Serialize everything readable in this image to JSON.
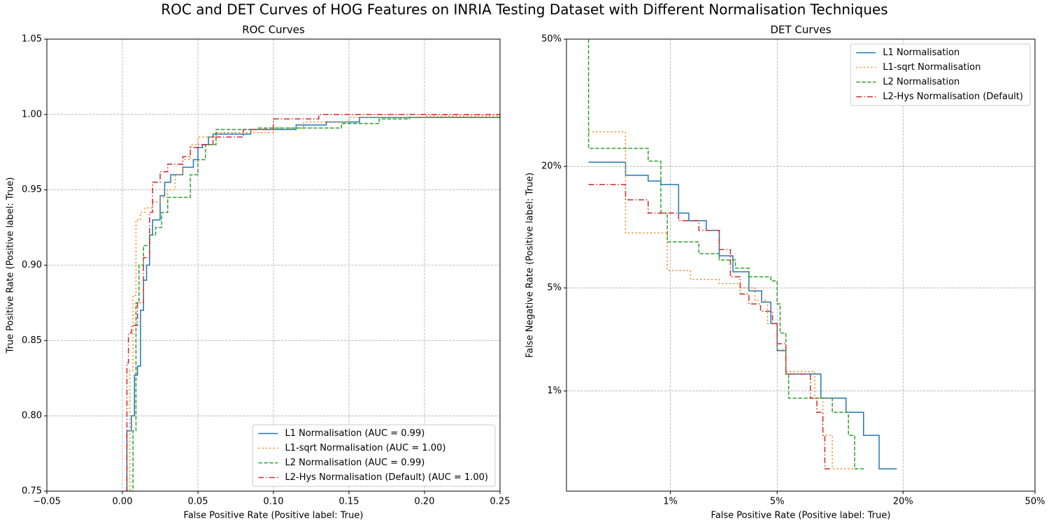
{
  "title": "ROC and DET Curves of HOG Features on INRIA Testing Dataset with Different Normalisation Techniques",
  "chart_data": [
    {
      "type": "line",
      "title": "ROC Curves",
      "x_label": "False Positive Rate (Positive label: True)",
      "y_label": "True Positive Rate (Positive label: True)",
      "scale": "linear",
      "drawstyle": "steps-post",
      "grid": true,
      "legend": "lower right",
      "xlim": [
        -0.05,
        0.25
      ],
      "xticks": [
        {
          "value": -0.05,
          "label": "−0.05"
        },
        {
          "value": 0,
          "label": "0.00"
        },
        0.05,
        {
          "value": 0.1,
          "label": "0.10"
        },
        0.15,
        {
          "value": 0.2,
          "label": "0.20"
        },
        0.25
      ],
      "ylim": [
        0.75,
        1.05
      ],
      "yticks": [
        0.75,
        {
          "value": 0.8,
          "label": "0.80"
        },
        0.85,
        {
          "value": 0.9,
          "label": "0.90"
        },
        0.95,
        {
          "value": 1,
          "label": "1.00"
        },
        1.05
      ],
      "series": [
        {
          "name": "L1 Normalisation (AUC = 0.99)",
          "color": "#1f77b4",
          "dash": "solid",
          "x": [
            0.003,
            0.003,
            0.006,
            0.008,
            0.01,
            0.012,
            0.014,
            0.016,
            0.018,
            0.02,
            0.025,
            0.028,
            0.032,
            0.04,
            0.047,
            0.05,
            0.053,
            0.057,
            0.06,
            0.085,
            0.115,
            0.135,
            0.157,
            0.25
          ],
          "values": [
            0.75,
            0.79,
            0.8,
            0.827,
            0.833,
            0.87,
            0.89,
            0.9,
            0.92,
            0.93,
            0.946,
            0.955,
            0.96,
            0.965,
            0.97,
            0.978,
            0.98,
            0.985,
            0.987,
            0.99,
            0.993,
            0.995,
            0.998,
            1.0
          ]
        },
        {
          "name": "L1-sqrt Normalisation (AUC = 1.00)",
          "color": "#ff7f0e",
          "dash": "dotted",
          "x": [
            0.003,
            0.005,
            0.007,
            0.009,
            0.012,
            0.015,
            0.02,
            0.025,
            0.03,
            0.035,
            0.04,
            0.045,
            0.05,
            0.062,
            0.1,
            0.12,
            0.15,
            0.2,
            0.25
          ],
          "values": [
            0.75,
            0.83,
            0.88,
            0.93,
            0.935,
            0.938,
            0.942,
            0.945,
            0.95,
            0.96,
            0.97,
            0.98,
            0.985,
            0.988,
            0.991,
            0.995,
            0.998,
            0.999,
            1.0
          ]
        },
        {
          "name": "L2 Normalisation (AUC = 0.99)",
          "color": "#2ca02c",
          "dash": "dashed",
          "x": [
            0.005,
            0.007,
            0.009,
            0.011,
            0.014,
            0.018,
            0.022,
            0.026,
            0.03,
            0.045,
            0.05,
            0.055,
            0.062,
            0.09,
            0.145,
            0.17,
            0.19,
            0.25
          ],
          "values": [
            0.75,
            0.79,
            0.875,
            0.9,
            0.913,
            0.92,
            0.925,
            0.935,
            0.945,
            0.96,
            0.97,
            0.98,
            0.99,
            0.991,
            0.994,
            0.997,
            0.998,
            1.0
          ]
        },
        {
          "name": "L2-Hys Normalisation (Default) (AUC = 1.00)",
          "color": "#d62728",
          "dash": "dashdot",
          "x": [
            0.002,
            0.003,
            0.004,
            0.006,
            0.01,
            0.014,
            0.018,
            0.02,
            0.025,
            0.03,
            0.04,
            0.045,
            0.05,
            0.06,
            0.08,
            0.1,
            0.13,
            0.25
          ],
          "values": [
            0.75,
            0.835,
            0.855,
            0.86,
            0.875,
            0.905,
            0.935,
            0.955,
            0.962,
            0.967,
            0.972,
            0.978,
            0.98,
            0.985,
            0.99,
            0.997,
            1.0,
            1.0
          ]
        }
      ]
    },
    {
      "type": "line",
      "title": "DET Curves",
      "x_label": "False Positive Rate (Positive label: True)",
      "y_label": "False Negative Rate (Positive label: True)",
      "scale": "probit",
      "drawstyle": "steps-post",
      "grid": true,
      "legend": "upper right",
      "xlim": [
        0.0014,
        0.5
      ],
      "xticks": [
        {
          "value": 0.01,
          "label": "1%"
        },
        {
          "value": 0.05,
          "label": "5%"
        },
        {
          "value": 0.2,
          "label": "20%"
        },
        {
          "value": 0.5,
          "label": "50%"
        }
      ],
      "ylim": [
        0.0014,
        0.5
      ],
      "yticks": [
        {
          "value": 0.01,
          "label": "1%"
        },
        {
          "value": 0.05,
          "label": "5%"
        },
        {
          "value": 0.2,
          "label": "20%"
        },
        {
          "value": 0.5,
          "label": "50%"
        }
      ],
      "series": [
        {
          "name": "L1 Normalisation",
          "color": "#1f77b4",
          "dash": "solid",
          "x": [
            0.0022,
            0.0045,
            0.0068,
            0.0085,
            0.0115,
            0.0136,
            0.018,
            0.022,
            0.027,
            0.034,
            0.0406,
            0.046,
            0.05,
            0.056,
            0.086,
            0.114,
            0.137,
            0.16,
            0.189
          ],
          "values": [
            0.208,
            0.184,
            0.174,
            0.168,
            0.125,
            0.115,
            0.103,
            0.076,
            0.062,
            0.048,
            0.041,
            0.03,
            0.0197,
            0.0134,
            0.0088,
            0.0068,
            0.0044,
            0.00225,
            0.00225
          ]
        },
        {
          "name": "L1-sqrt Normalisation",
          "color": "#ff7f0e",
          "dash": "dotted",
          "x": [
            0.0022,
            0.0045,
            0.0095,
            0.014,
            0.022,
            0.03,
            0.037,
            0.044,
            0.05,
            0.056,
            0.08,
            0.088,
            0.098,
            0.13
          ],
          "values": [
            0.27,
            0.1,
            0.063,
            0.056,
            0.053,
            0.05,
            0.042,
            0.03,
            0.02,
            0.014,
            0.0088,
            0.0044,
            0.00225,
            0.00225
          ]
        },
        {
          "name": "L2 Normalisation",
          "color": "#2ca02c",
          "dash": "dashed",
          "x": [
            0.0022,
            0.0022,
            0.0068,
            0.0085,
            0.0095,
            0.016,
            0.022,
            0.028,
            0.034,
            0.046,
            0.05,
            0.052,
            0.056,
            0.058,
            0.098,
            0.117,
            0.125,
            0.14
          ],
          "values": [
            0.5,
            0.235,
            0.21,
            0.125,
            0.09,
            0.078,
            0.072,
            0.065,
            0.058,
            0.055,
            0.04,
            0.026,
            0.0134,
            0.0088,
            0.0068,
            0.0044,
            0.00225,
            0.00225
          ]
        },
        {
          "name": "L2-Hys Normalisation (Default)",
          "color": "#d62728",
          "dash": "dashdot",
          "x": [
            0.0022,
            0.0045,
            0.0068,
            0.0115,
            0.016,
            0.022,
            0.026,
            0.03,
            0.034,
            0.04,
            0.047,
            0.05,
            0.056,
            0.076,
            0.082,
            0.088,
            0.09,
            0.096
          ],
          "values": [
            0.168,
            0.144,
            0.125,
            0.115,
            0.103,
            0.082,
            0.058,
            0.046,
            0.04,
            0.036,
            0.03,
            0.022,
            0.0134,
            0.0088,
            0.0068,
            0.0044,
            0.00225,
            0.00225
          ]
        }
      ]
    }
  ]
}
